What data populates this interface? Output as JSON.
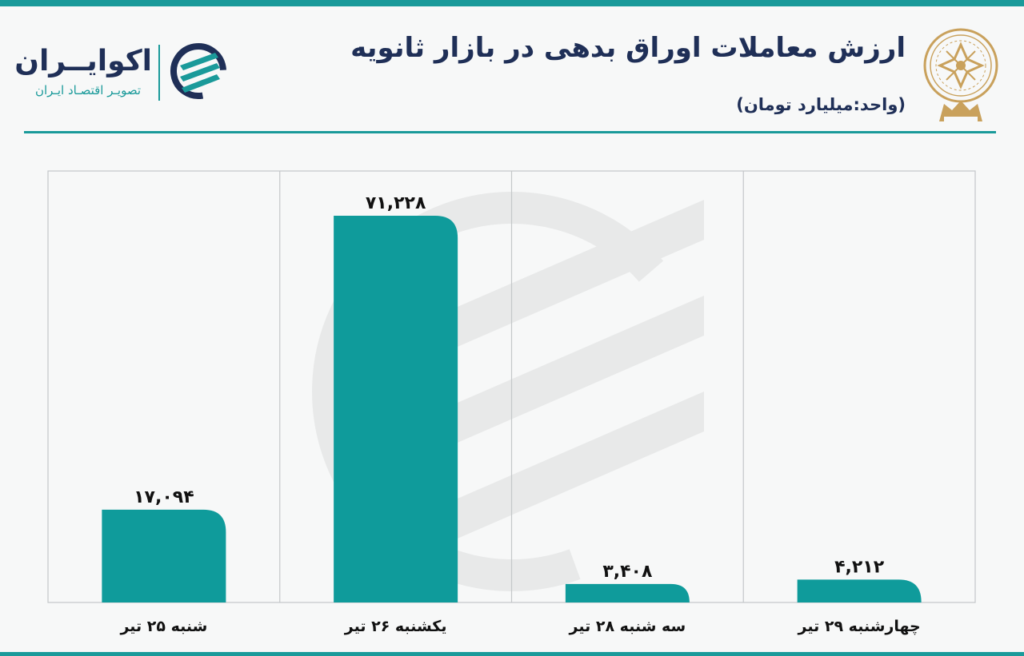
{
  "header": {
    "title": "ارزش معاملات اوراق بدهی در بازار ثانویه",
    "unit_label": "(واحد:میلیارد تومان)"
  },
  "brand": {
    "name": "اکوایــران",
    "tagline": "تصویـر اقتصـاد ایـران",
    "logo_icon": "ecoiran-logo-icon",
    "seal_icon": "tehran-stock-exchange-seal-icon"
  },
  "colors": {
    "accent": "#1a9a9a",
    "title": "#1f2f57",
    "bar": "#0f9b9b",
    "grid": "#c4c7c9",
    "seal": "#c9a15c"
  },
  "chart_data": {
    "type": "bar",
    "categories": [
      "شنبه ۲۵ تیر",
      "یکشنبه ۲۶ تیر",
      "سه شنبه ۲۸ تیر",
      "چهارشنبه ۲۹ تیر"
    ],
    "values": [
      17094,
      71228,
      3408,
      4212
    ],
    "value_labels": [
      "۱۷,۰۹۴",
      "۷۱,۲۲۸",
      "۳,۴۰۸",
      "۴,۲۱۲"
    ],
    "title": "ارزش معاملات اوراق بدهی در بازار ثانویه",
    "ylabel": "",
    "xlabel": "",
    "ylim": [
      0,
      80000
    ],
    "grid": "vertical"
  }
}
